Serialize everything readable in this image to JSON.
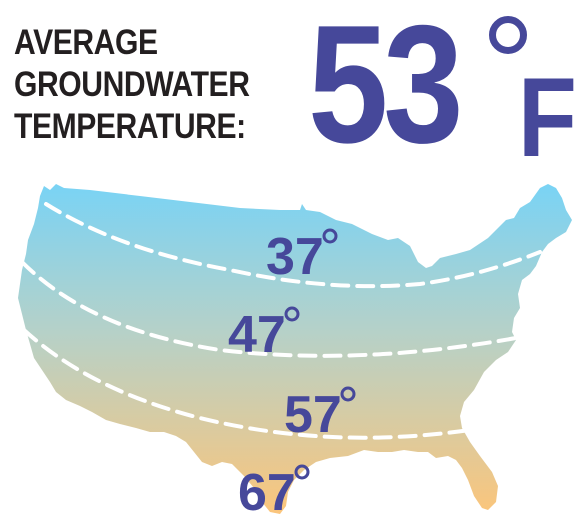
{
  "header": {
    "title_lines": [
      "AVERAGE",
      "GROUNDWATER",
      "TEMPERATURE:"
    ],
    "value": "53",
    "unit": "F"
  },
  "map": {
    "region": "Contiguous United States",
    "gradient_colors": {
      "north": "#79d3f5",
      "middle": "#b6d1c8",
      "south": "#fbc57b"
    },
    "isotherm_line_color": "#ffffff",
    "label_color": "#46489a",
    "isotherms": [
      {
        "value": "37"
      },
      {
        "value": "47"
      },
      {
        "value": "57"
      },
      {
        "value": "67"
      }
    ]
  },
  "colors": {
    "title_text": "#231f20",
    "accent": "#46489a"
  }
}
